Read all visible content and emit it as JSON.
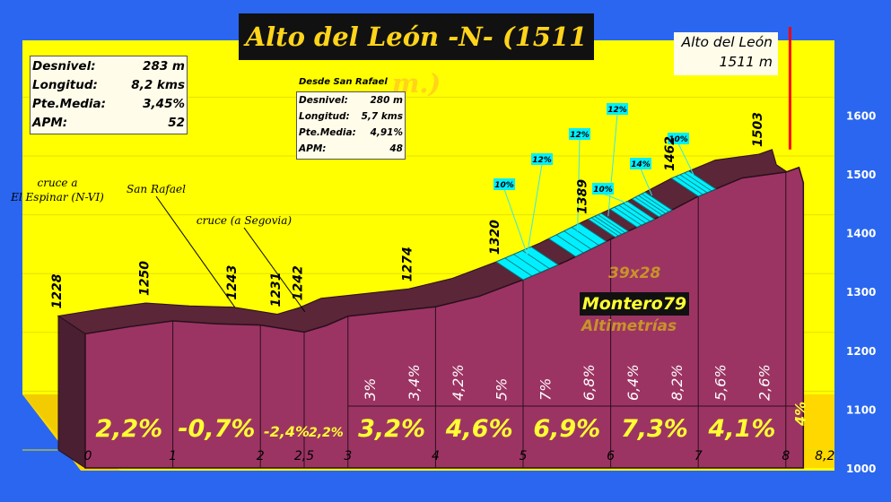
{
  "title": "Alto del León -N- (1511 m.)",
  "summit": {
    "name": "Alto del León",
    "altitude": "1511 m"
  },
  "stats_main": [
    {
      "label": "Desnivel:",
      "value": "283 m"
    },
    {
      "label": "Longitud:",
      "value": "8,2 kms"
    },
    {
      "label": "Pte.Media:",
      "value": "3,45%"
    },
    {
      "label": "APM:",
      "value": "52"
    }
  ],
  "stats_secondary": {
    "title": "Desde San Rafael",
    "rows": [
      {
        "label": "Desnivel:",
        "value": "280 m"
      },
      {
        "label": "Longitud:",
        "value": "5,7 kms"
      },
      {
        "label": "Pte.Media:",
        "value": "4,91%"
      },
      {
        "label": "APM:",
        "value": "48"
      }
    ]
  },
  "branding": {
    "scale": "39x28",
    "name": "Montero79",
    "subtitle": "Altimetrías"
  },
  "colors": {
    "background": "#2a66f0",
    "panel": "#ffff00",
    "profile_face": "#9c3463",
    "profile_top": "#5a2638",
    "steep": "#00f0ff",
    "summit_line": "#ff0000",
    "big_pct": "#ffff33"
  },
  "chart_data": {
    "type": "area",
    "title": "Alto del León -N- (1511 m.)",
    "xlabel": "",
    "ylabel": "",
    "xlim": [
      0,
      8.2
    ],
    "ylim": [
      1000,
      1600
    ],
    "x_ticks": [
      0,
      1,
      2,
      2.5,
      3,
      4,
      5,
      6,
      7,
      8,
      8.2
    ],
    "x_tick_labels": [
      "0",
      "1",
      "2",
      "2,5",
      "3",
      "4",
      "5",
      "6",
      "7",
      "8",
      "8,2"
    ],
    "y_ticks": [
      1000,
      1100,
      1200,
      1300,
      1400,
      1500,
      1600
    ],
    "profile": [
      [
        0,
        1228
      ],
      [
        0.5,
        1240
      ],
      [
        1,
        1250
      ],
      [
        1.5,
        1245
      ],
      [
        2,
        1243
      ],
      [
        2.5,
        1231
      ],
      [
        2.75,
        1242
      ],
      [
        3,
        1258
      ],
      [
        3.5,
        1266
      ],
      [
        4,
        1274
      ],
      [
        4.5,
        1292
      ],
      [
        5,
        1320
      ],
      [
        5.5,
        1352
      ],
      [
        6,
        1389
      ],
      [
        6.5,
        1423
      ],
      [
        7,
        1462
      ],
      [
        7.5,
        1493
      ],
      [
        8,
        1503
      ],
      [
        8.15,
        1511
      ],
      [
        8.2,
        1485
      ]
    ],
    "altitude_labels": [
      {
        "x": 0,
        "label": "1228"
      },
      {
        "x": 1,
        "label": "1250"
      },
      {
        "x": 2,
        "label": "1243"
      },
      {
        "x": 2.5,
        "label": "1231"
      },
      {
        "x": 2.75,
        "label": "1242"
      },
      {
        "x": 4,
        "label": "1274"
      },
      {
        "x": 5,
        "label": "1320"
      },
      {
        "x": 6,
        "label": "1389"
      },
      {
        "x": 7,
        "label": "1462"
      },
      {
        "x": 8,
        "label": "1503"
      }
    ],
    "km_gradients": [
      {
        "x": 3.25,
        "label": "3%"
      },
      {
        "x": 3.75,
        "label": "3,4%"
      },
      {
        "x": 4.25,
        "label": "4,2%"
      },
      {
        "x": 4.75,
        "label": "5%"
      },
      {
        "x": 5.25,
        "label": "7%"
      },
      {
        "x": 5.75,
        "label": "6,8%"
      },
      {
        "x": 6.25,
        "label": "6,4%"
      },
      {
        "x": 6.75,
        "label": "8,2%"
      },
      {
        "x": 7.25,
        "label": "5,6%"
      },
      {
        "x": 7.75,
        "label": "2,6%"
      }
    ],
    "section_gradients": [
      {
        "x": 0.5,
        "label": "2,2%",
        "size": "big"
      },
      {
        "x": 1.5,
        "label": "-0,7%",
        "size": "big"
      },
      {
        "x": 2.3,
        "label": "-2,4%",
        "size": "mid"
      },
      {
        "x": 2.75,
        "label": "2,2%",
        "size": "small"
      },
      {
        "x": 3.5,
        "label": "3,2%",
        "size": "big"
      },
      {
        "x": 4.5,
        "label": "4,6%",
        "size": "big"
      },
      {
        "x": 5.5,
        "label": "6,9%",
        "size": "big"
      },
      {
        "x": 6.5,
        "label": "7,3%",
        "size": "big"
      },
      {
        "x": 7.5,
        "label": "4,1%",
        "size": "big"
      },
      {
        "x": 8.1,
        "label": "4%",
        "size": "last"
      }
    ],
    "steep_segments": [
      [
        5.0,
        5.4
      ],
      [
        5.6,
        5.95
      ],
      [
        6.05,
        6.2
      ],
      [
        6.3,
        6.5
      ],
      [
        6.55,
        6.7
      ],
      [
        7.0,
        7.2
      ]
    ],
    "steep_labels": [
      {
        "label": "10%",
        "segment": 0
      },
      {
        "label": "12%",
        "segment": 0
      },
      {
        "label": "12%",
        "segment": 1
      },
      {
        "label": "12%",
        "segment": 2
      },
      {
        "label": "10%",
        "segment": 3
      },
      {
        "label": "14%",
        "segment": 4
      },
      {
        "label": "10%",
        "segment": 5
      }
    ],
    "landmarks": [
      {
        "x": 0,
        "label": "cruce a\nEl Espinar (N-VI)"
      },
      {
        "x": 1.4,
        "label": "San Rafael"
      },
      {
        "x": 2.2,
        "label": "cruce (a Segovia)"
      }
    ],
    "summit_x": 8.15
  }
}
